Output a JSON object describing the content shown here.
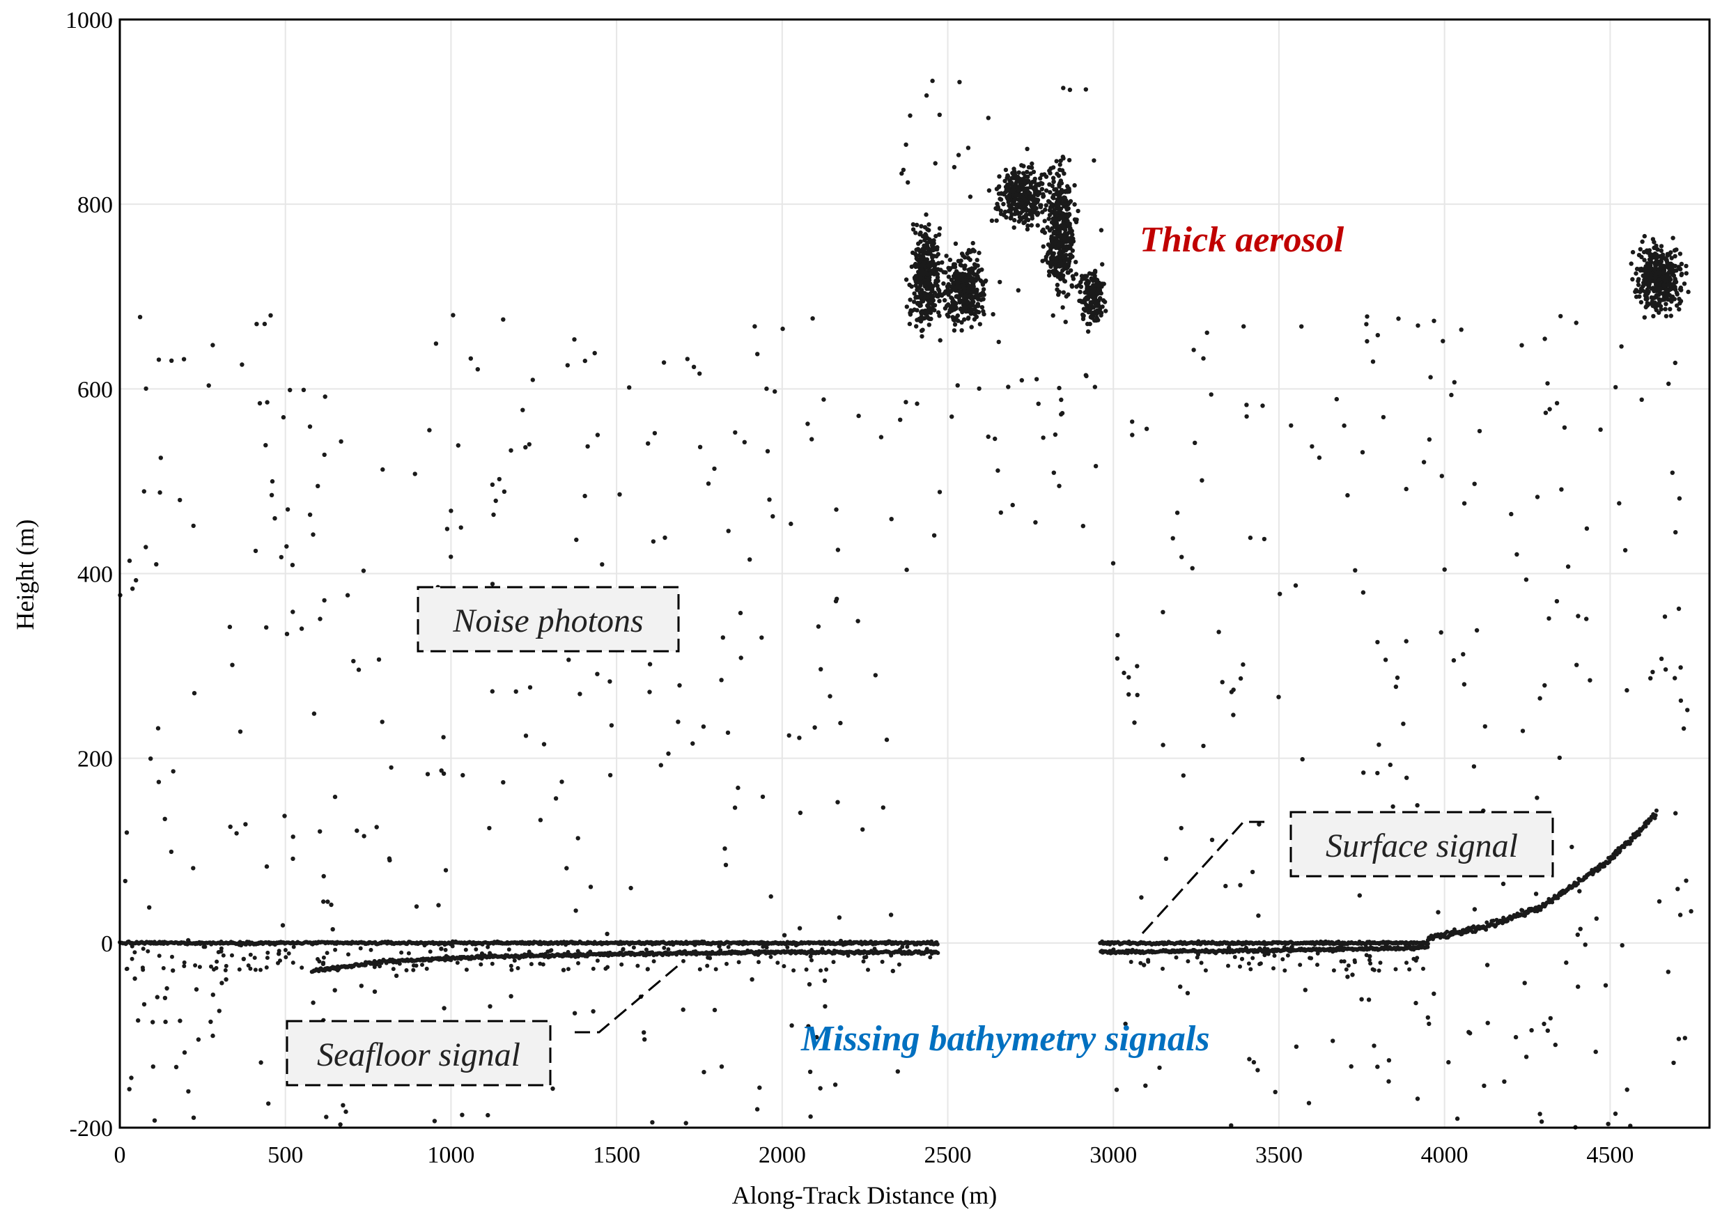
{
  "chart_data": {
    "type": "scatter",
    "xlabel": "Along-Track Distance (m)",
    "ylabel": "Height (m)",
    "xlim": [
      0,
      4800
    ],
    "ylim": [
      -200,
      1000
    ],
    "x_ticks": [
      "0",
      "500",
      "1000",
      "1500",
      "2000",
      "2500",
      "3000",
      "3500",
      "4000",
      "4500"
    ],
    "y_ticks": [
      "-200",
      "0",
      "200",
      "400",
      "600",
      "800",
      "1000"
    ],
    "grid": true,
    "point_color": "#1a1a1a",
    "annotations": {
      "noise": "Noise photons",
      "surface": "Surface signal",
      "seafloor": "Seafloor signal",
      "aerosol": "Thick aerosol",
      "missing": "Missing bathymetry signals"
    },
    "annotation_colors": {
      "aerosol": "#c00000",
      "missing": "#0070c0"
    },
    "series": [
      {
        "kind": "surface_signal",
        "segments": [
          {
            "x_start": 0,
            "x_end": 2470,
            "y": 0
          },
          {
            "x_start": 2960,
            "x_end": 3950,
            "y": 0
          }
        ],
        "rising_segment": {
          "x": [
            3950,
            4100,
            4300,
            4500,
            4640
          ],
          "y": [
            5,
            15,
            40,
            90,
            140
          ]
        }
      },
      {
        "kind": "seafloor_signal",
        "x": [
          580,
          800,
          1100,
          1500,
          2000,
          2470,
          2960,
          3500,
          3950
        ],
        "y": [
          -30,
          -20,
          -15,
          -12,
          -10,
          -10,
          -10,
          -8,
          -5
        ]
      },
      {
        "kind": "thick_aerosol",
        "clusters": [
          {
            "x_range": [
              2370,
              2500
            ],
            "y_range": [
              650,
              790
            ]
          },
          {
            "x_range": [
              2460,
              2640
            ],
            "y_range": [
              660,
              760
            ]
          },
          {
            "x_range": [
              2620,
              2830
            ],
            "y_range": [
              770,
              850
            ]
          },
          {
            "x_range": [
              2780,
              2900
            ],
            "y_range": [
              680,
              860
            ]
          },
          {
            "x_range": [
              2880,
              2990
            ],
            "y_range": [
              660,
              740
            ]
          },
          {
            "x_range": [
              4550,
              4750
            ],
            "y_range": [
              670,
              770
            ]
          }
        ]
      },
      {
        "kind": "noise_photons",
        "x_range": [
          0,
          4750
        ],
        "y_range": [
          -200,
          940
        ],
        "count": 650
      }
    ]
  }
}
